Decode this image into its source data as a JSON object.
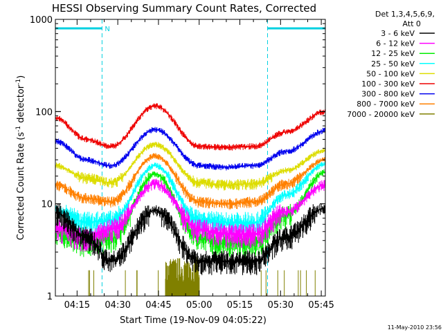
{
  "chart_data": {
    "type": "line",
    "title": "HESSI Observing Summary Count Rates, Corrected",
    "xlabel": "Start Time (19-Nov-09 04:05:22)",
    "ylabel_main": "Corrected Count Rate (s",
    "ylabel_sup1": "-1",
    "ylabel_mid": " detector",
    "ylabel_sup2": "-1",
    "ylabel_end": ")",
    "yscale": "log",
    "ylim": [
      1,
      1000
    ],
    "xlim_minutes": [
      247.0,
      346.5
    ],
    "x_ticks": [
      {
        "label": "04:15",
        "minute": 255
      },
      {
        "label": "04:30",
        "minute": 270
      },
      {
        "label": "04:45",
        "minute": 285
      },
      {
        "label": "05:00",
        "minute": 300
      },
      {
        "label": "05:15",
        "minute": 315
      },
      {
        "label": "05:30",
        "minute": 330
      },
      {
        "label": "05:45",
        "minute": 345
      }
    ],
    "y_ticks": [
      {
        "label": "1000",
        "value": 1000
      },
      {
        "label": "100",
        "value": 100
      },
      {
        "label": "10",
        "value": 10
      },
      {
        "label": "1",
        "value": 1
      }
    ],
    "legend_header": [
      "Det 1,3,4,5,6,9,",
      "Att 0"
    ],
    "legend_position": "right, outside plot",
    "series": [
      {
        "name": "3 - 6 keV",
        "color": "#000000",
        "x": [
          247.0,
          258.4,
          267.5,
          283.8,
          300.1,
          309.2,
          320.6,
          332.0,
          346.5
        ],
        "y": [
          8.0,
          4.4,
          2.4,
          8.5,
          2.4,
          2.4,
          2.4,
          4.4,
          9.0
        ]
      },
      {
        "name": "6 - 12 keV",
        "color": "#ff00ff",
        "x": [
          247.0,
          258.4,
          267.5,
          283.8,
          300.1,
          309.2,
          320.6,
          332.0,
          346.5
        ],
        "y": [
          5.4,
          4.2,
          5.3,
          16.5,
          5.3,
          4.7,
          4.7,
          8.2,
          16.0
        ]
      },
      {
        "name": "12 - 25 keV",
        "color": "#00ee00",
        "x": [
          247.0,
          258.4,
          267.5,
          283.8,
          300.1,
          309.2,
          320.6,
          332.0,
          346.5
        ],
        "y": [
          5.0,
          3.7,
          4.2,
          21.0,
          4.2,
          3.7,
          3.7,
          7.5,
          22.0
        ]
      },
      {
        "name": "25 - 50 keV",
        "color": "#00ffff",
        "x": [
          247.0,
          258.4,
          267.5,
          283.8,
          300.1,
          309.2,
          320.6,
          332.0,
          346.5
        ],
        "y": [
          8.5,
          6.3,
          6.6,
          26.0,
          6.6,
          6.3,
          6.3,
          12.5,
          27.0
        ]
      },
      {
        "name": "50 - 100 keV",
        "color": "#dddd00",
        "x": [
          247.0,
          258.4,
          267.5,
          283.8,
          300.1,
          309.2,
          320.6,
          332.0,
          346.5
        ],
        "y": [
          26.0,
          19.0,
          17.0,
          44.0,
          17.0,
          16.0,
          16.5,
          23.0,
          38.0
        ]
      },
      {
        "name": "100 - 300 keV",
        "color": "#ee0000",
        "x": [
          247.0,
          258.4,
          267.5,
          283.8,
          300.1,
          309.2,
          320.6,
          332.0,
          346.5
        ],
        "y": [
          85.0,
          50.0,
          42.0,
          115.0,
          42.0,
          41.0,
          42.0,
          60.0,
          100.0
        ]
      },
      {
        "name": "300 - 800 keV",
        "color": "#0000ee",
        "x": [
          247.0,
          258.4,
          267.5,
          283.8,
          300.1,
          309.2,
          320.6,
          332.0,
          346.5
        ],
        "y": [
          48.0,
          30.0,
          26.0,
          64.0,
          26.0,
          25.0,
          26.0,
          37.0,
          62.0
        ]
      },
      {
        "name": "800 - 7000 keV",
        "color": "#ff8000",
        "x": [
          247.0,
          258.4,
          267.5,
          283.8,
          300.1,
          309.2,
          320.6,
          332.0,
          346.5
        ],
        "y": [
          16.0,
          11.5,
          10.5,
          33.0,
          10.5,
          10.0,
          10.5,
          16.5,
          30.0
        ]
      },
      {
        "name": "7000 - 20000 keV",
        "color": "#808000",
        "x": [
          247.0,
          287.5,
          287.6,
          300.0,
          300.1,
          346.5
        ],
        "y": [
          1.0,
          1.0,
          2.5,
          2.5,
          1.0,
          1.0
        ]
      }
    ],
    "flags": [
      {
        "label": "N",
        "start_minute": 247.0,
        "end_minute": 264.2
      },
      {
        "label": "",
        "start_minute": 325.2,
        "end_minute": 346.5
      }
    ],
    "footer_date": "11-May-2010 23:56"
  }
}
